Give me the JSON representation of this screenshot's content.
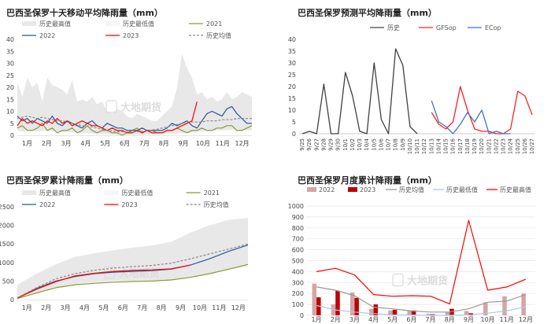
{
  "chart_data": [
    {
      "id": "tl",
      "type": "line",
      "title": "巴西圣保罗十天移动平均降雨量（mm）",
      "legend": [
        "历史最高值",
        "历史最低值",
        "2021",
        "2022",
        "2023",
        "历史均值"
      ],
      "x_tick_labels": [
        "1月",
        "2月",
        "3月",
        "4月",
        "5月",
        "6月",
        "7月",
        "8月",
        "9月",
        "10月",
        "11月",
        "12月"
      ],
      "ylim": [
        0,
        40
      ],
      "y_ticks": [
        0,
        5,
        10,
        15,
        20,
        25,
        30,
        35,
        40
      ],
      "series": [
        {
          "name": "历史最高值",
          "type": "area",
          "color": "#e8e8e8",
          "values": [
            22,
            16,
            24,
            20,
            22,
            14,
            24,
            21,
            20,
            19,
            17,
            23,
            14,
            15,
            14,
            16,
            13,
            14,
            10,
            9,
            11,
            10,
            8,
            7,
            9,
            8,
            7,
            6,
            6,
            8,
            10,
            12,
            20,
            34,
            28,
            24,
            17,
            18,
            15,
            16,
            14,
            15,
            18,
            15,
            16,
            18,
            17,
            16
          ]
        },
        {
          "name": "历史最低值",
          "type": "area",
          "color": "#ffffff",
          "values": [
            2,
            1.5,
            2,
            2,
            1.5,
            1.8,
            2,
            1.8,
            1.5,
            1.4,
            1.5,
            1.2,
            1,
            1,
            0.8,
            0.8,
            0.6,
            0.5,
            0.4,
            0.3,
            0.2,
            0.2,
            0.2,
            0.2,
            0.2,
            0.2,
            0.3,
            0.3,
            0.4,
            0.5,
            0.6,
            0.6,
            0.7,
            1,
            1,
            1.2,
            1.5,
            1.6,
            1.8,
            1.8,
            2,
            2,
            2.2,
            2.2,
            2.2,
            2,
            2,
            2
          ]
        },
        {
          "name": "2021",
          "color": "#8a9a3a",
          "values": [
            3,
            4,
            2,
            2,
            3,
            5,
            2,
            3,
            1,
            2,
            2,
            3,
            1,
            2,
            4,
            2,
            1,
            2,
            2,
            1,
            1,
            0,
            1,
            2,
            3,
            1,
            2,
            2,
            1,
            1,
            2,
            2,
            3,
            2,
            1,
            2,
            2,
            3,
            2,
            2,
            3,
            3,
            4,
            4,
            2,
            2,
            3,
            4
          ]
        },
        {
          "name": "2022",
          "color": "#2f5597",
          "values": [
            8,
            6,
            7,
            5,
            7,
            6,
            5,
            8,
            5,
            4,
            6,
            5,
            4,
            3,
            5,
            6,
            4,
            3,
            5,
            4,
            3,
            3,
            2,
            2,
            2,
            3,
            2,
            2,
            2,
            2,
            3,
            5,
            4,
            5,
            6,
            4,
            3,
            6,
            9,
            10,
            9,
            8,
            11,
            12,
            9,
            7,
            5,
            5
          ]
        },
        {
          "name": "2023",
          "color": "#ff0000",
          "values": [
            4,
            7,
            5,
            6,
            5,
            4,
            6,
            5,
            7,
            5,
            6,
            4,
            5,
            6,
            5,
            4,
            4,
            3,
            2,
            3,
            2,
            2,
            1,
            1,
            2,
            1,
            2,
            1,
            1,
            1,
            2,
            2,
            3,
            4,
            5,
            6,
            14
          ]
        },
        {
          "name": "历史均值",
          "color": "#888888",
          "dash": true,
          "values": [
            7,
            7.5,
            8,
            7.5,
            7,
            7.5,
            7,
            6.5,
            6,
            6,
            5.5,
            5,
            4.5,
            4,
            3.8,
            3.5,
            3,
            2.5,
            2,
            1.8,
            1.5,
            1.5,
            1.3,
            1.3,
            1.5,
            1.6,
            2,
            2.2,
            2.5,
            3,
            3.5,
            4,
            4.5,
            5,
            5.5,
            5.5,
            5.5,
            5.5,
            6,
            6,
            6,
            6.5,
            6.5,
            6.5,
            7,
            7,
            7,
            7
          ]
        }
      ],
      "watermark": "大地期货"
    },
    {
      "id": "tr",
      "type": "line",
      "title": "巴西圣保罗预测平均降雨量（mm）",
      "legend": [
        "历史",
        "GFSop",
        "ECop"
      ],
      "categories": [
        "9/25",
        "9/26",
        "9/27",
        "9/28",
        "9/29",
        "9/30",
        "10/1",
        "10/2",
        "10/3",
        "10/4",
        "10/5",
        "10/6",
        "10/7",
        "10/8",
        "10/9",
        "10/10",
        "10/11",
        "10/12",
        "10/13",
        "10/14",
        "10/15",
        "10/16",
        "10/17",
        "10/18",
        "10/19",
        "10/20",
        "10/21",
        "10/22",
        "10/23",
        "10/24",
        "10/25",
        "10/26",
        "10/27"
      ],
      "x_tick_labels": [
        "9/25",
        "9/27",
        "9/29",
        "10/1",
        "10/3",
        "10/5",
        "10/7",
        "10/9",
        "10/11",
        "10/13",
        "10/15",
        "10/17",
        "10/19",
        "10/21",
        "10/23",
        "10/25",
        "10/27"
      ],
      "ylim": [
        0,
        40
      ],
      "y_ticks": [
        0,
        5,
        10,
        15,
        20,
        25,
        30,
        35,
        40
      ],
      "series": [
        {
          "name": "历史",
          "color": "#404040",
          "values": [
            0,
            1,
            0,
            21,
            0,
            0,
            26,
            16,
            1,
            0,
            30,
            6,
            0,
            36,
            29,
            3,
            0,
            null,
            null,
            null,
            null,
            null,
            null,
            null,
            null,
            null,
            null,
            null,
            null,
            null,
            null,
            null,
            null
          ]
        },
        {
          "name": "GFSop",
          "color": "#ff2020",
          "values": [
            null,
            null,
            null,
            null,
            null,
            null,
            null,
            null,
            null,
            null,
            null,
            null,
            null,
            null,
            null,
            null,
            null,
            null,
            9,
            4,
            2,
            5,
            20,
            10,
            2,
            1,
            1,
            0,
            0,
            2,
            18,
            16,
            8
          ]
        },
        {
          "name": "ECop",
          "color": "#4472c4",
          "values": [
            null,
            null,
            null,
            null,
            null,
            null,
            null,
            null,
            null,
            null,
            null,
            null,
            null,
            null,
            null,
            null,
            null,
            null,
            14,
            5,
            3,
            0,
            4,
            9,
            5,
            10,
            0,
            1,
            0,
            0,
            null,
            null,
            null
          ]
        }
      ]
    },
    {
      "id": "bl",
      "type": "area",
      "title": "巴西圣保罗累计降雨量（mm）",
      "legend": [
        "历史最高值",
        "历史最低值",
        "2021",
        "2022",
        "2023",
        "历史均值"
      ],
      "x_tick_labels": [
        "1月",
        "2月",
        "3月",
        "4月",
        "5月",
        "6月",
        "7月",
        "8月",
        "9月",
        "10月",
        "11月",
        "12月"
      ],
      "ylim": [
        0,
        2500
      ],
      "y_ticks": [
        0,
        500,
        1000,
        1500,
        2000,
        2500
      ],
      "series": [
        {
          "name": "历史最高值",
          "type": "area",
          "color": "#e8e8e8",
          "values": [
            400,
            700,
            950,
            1150,
            1250,
            1330,
            1400,
            1460,
            1560,
            1800,
            2000,
            2150,
            2200
          ]
        },
        {
          "name": "历史最低值",
          "type": "area",
          "color": "#ffffff",
          "values": [
            80,
            200,
            330,
            420,
            470,
            500,
            510,
            520,
            540,
            600,
            700,
            800,
            900
          ]
        },
        {
          "name": "2021",
          "color": "#8a9a3a",
          "values": [
            30,
            180,
            320,
            400,
            440,
            470,
            490,
            500,
            530,
            600,
            700,
            820,
            950
          ]
        },
        {
          "name": "2022",
          "color": "#2f5597",
          "values": [
            40,
            300,
            500,
            620,
            700,
            740,
            760,
            780,
            820,
            930,
            1100,
            1300,
            1470
          ]
        },
        {
          "name": "2023",
          "color": "#ff0000",
          "values": [
            40,
            280,
            480,
            640,
            710,
            760,
            790,
            800,
            830,
            930
          ]
        },
        {
          "name": "历史均值",
          "color": "#888888",
          "dash": true,
          "values": [
            50,
            320,
            560,
            700,
            790,
            850,
            890,
            920,
            980,
            1100,
            1230,
            1360,
            1500
          ]
        }
      ],
      "watermark": "大地期货"
    },
    {
      "id": "br",
      "type": "bar",
      "title": "巴西圣保罗月度累计降雨量（mm）",
      "legend": [
        "2022",
        "2023",
        "历史均值",
        "历史最低值",
        "历史最高值"
      ],
      "categories": [
        "1月",
        "2月",
        "3月",
        "4月",
        "5月",
        "6月",
        "7月",
        "8月",
        "9月",
        "10月",
        "11月",
        "12月"
      ],
      "ylim": [
        0,
        1000
      ],
      "y_ticks": [
        0,
        100,
        200,
        300,
        400,
        500,
        600,
        700,
        800,
        900,
        1000
      ],
      "series": [
        {
          "name": "2022",
          "type": "bar",
          "color": "#d4a5a5",
          "values": [
            290,
            100,
            210,
            60,
            45,
            40,
            15,
            30,
            40,
            120,
            175,
            200
          ]
        },
        {
          "name": "2023",
          "type": "bar",
          "color": "#c00000",
          "values": [
            165,
            225,
            160,
            100,
            50,
            45,
            10,
            60,
            20,
            null,
            null,
            null
          ]
        },
        {
          "name": "历史均值",
          "color": "#999999",
          "values": [
            260,
            230,
            180,
            75,
            60,
            40,
            30,
            30,
            60,
            120,
            130,
            190
          ]
        },
        {
          "name": "历史最低值",
          "color": "#a9c8e8",
          "values": [
            90,
            50,
            30,
            15,
            5,
            3,
            0,
            0,
            5,
            20,
            40,
            80
          ]
        },
        {
          "name": "历史最高值",
          "color": "#ff0000",
          "values": [
            400,
            430,
            370,
            190,
            175,
            180,
            175,
            105,
            870,
            230,
            260,
            330
          ]
        }
      ],
      "watermark": "大地期货"
    }
  ]
}
